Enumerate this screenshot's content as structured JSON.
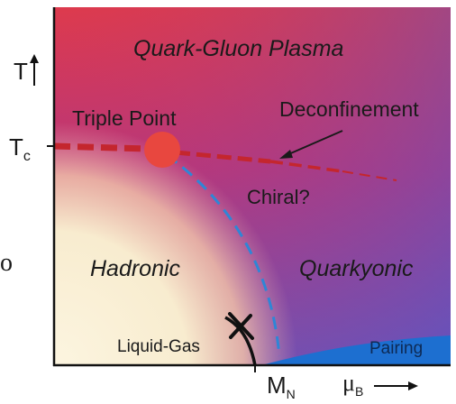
{
  "regions": {
    "qgp": "Quark-Gluon Plasma",
    "hadronic": "Hadronic",
    "quarkyonic": "Quarkyonic"
  },
  "annotations": {
    "triple_point": "Triple Point",
    "deconfinement": "Deconfinement",
    "chiral": "Chiral?",
    "liquid_gas": "Liquid-Gas",
    "pairing": "Pairing"
  },
  "axes": {
    "y_label": "T",
    "y_tick": "T",
    "y_tick_sub": "c",
    "x_tick": "M",
    "x_tick_sub": "N",
    "x_label": "μ",
    "x_label_sub": "B",
    "left_margin_glyph": "o"
  },
  "colors": {
    "triple_point": "#e8473f",
    "deconfinement_line": "#c4262e",
    "chiral_line": "#2e86d6",
    "pairing_region": "#1d6fd0",
    "liquid_gas_line": "#111111"
  }
}
